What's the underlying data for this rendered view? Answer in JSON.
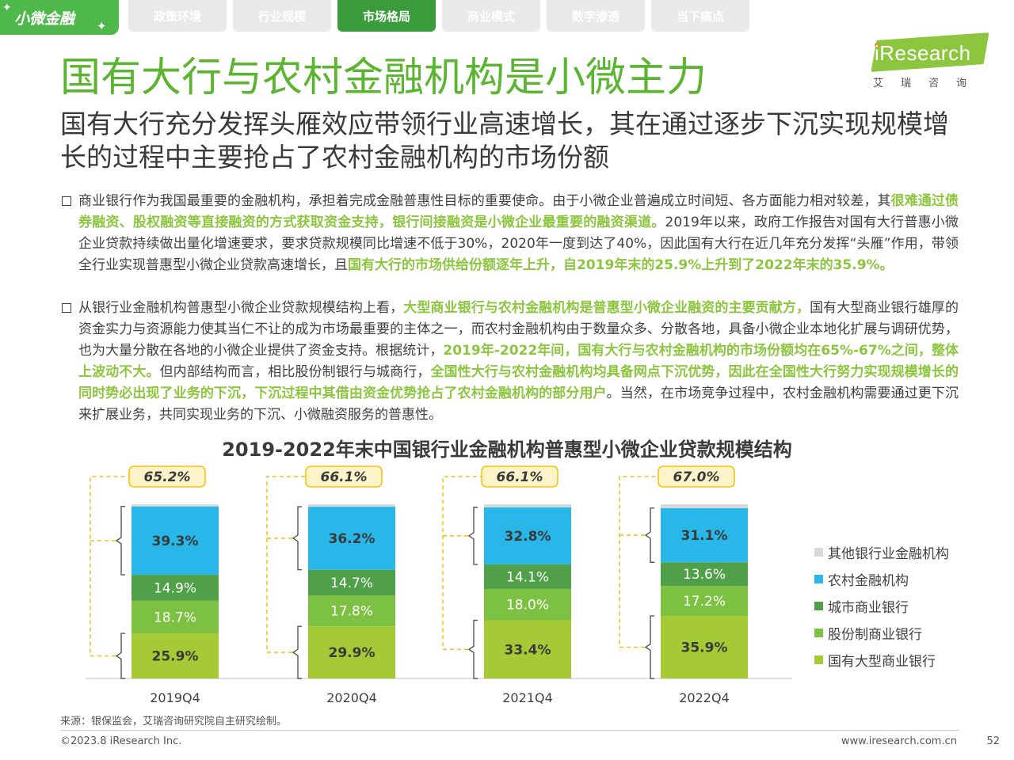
{
  "brand_tag": "小微金融",
  "nav": {
    "tabs": [
      {
        "label": "政策环境",
        "active": false
      },
      {
        "label": "行业规模",
        "active": false
      },
      {
        "label": "市场格局",
        "active": true
      },
      {
        "label": "商业模式",
        "active": false
      },
      {
        "label": "数字渗透",
        "active": false
      },
      {
        "label": "当下痛点",
        "active": false
      }
    ]
  },
  "logo": {
    "text": "iResearch",
    "cn": "艾瑞咨询"
  },
  "title": "国有大行与农村金融机构是小微主力",
  "subtitle": "国有大行充分发挥头雁效应带领行业高速增长，其在通过逐步下沉实现规模增长的过程中主要抢占了农村金融机构的市场份额",
  "paragraphs": [
    {
      "segments": [
        {
          "text": "商业银行作为我国最重要的金融机构，承担着完成金融普惠性目标的重要使命。由于小微企业普遍成立时间短、各方面能力相对较差，其",
          "highlight": false
        },
        {
          "text": "很难通过债券融资、股权融资等直接融资的方式获取资金支持，银行间接融资是小微企业最重要的融资渠道。",
          "highlight": true
        },
        {
          "text": "2019年以来，政府工作报告对国有大行普惠小微企业贷款持续做出量化增速要求，要求贷款规模同比增速不低于30%，2020年一度到达了40%，因此国有大行在近几年充分发挥“头雁”作用，带领全行业实现普惠型小微企业贷款高速增长，且",
          "highlight": false
        },
        {
          "text": "国有大行的市场供给份额逐年上升，自2019年末的25.9%上升到了2022年末的35.9%。",
          "highlight": true
        }
      ]
    },
    {
      "segments": [
        {
          "text": "从银行业金融机构普惠型小微企业贷款规模结构上看，",
          "highlight": false
        },
        {
          "text": "大型商业银行与农村金融机构是普惠型小微企业融资的主要贡献方，",
          "highlight": true
        },
        {
          "text": "国有大型商业银行雄厚的资金实力与资源能力使其当仁不让的成为市场最重要的主体之一，而农村金融机构由于数量众多、分散各地，具备小微企业本地化扩展与调研优势，也为大量分散在各地的小微企业提供了资金支持。根据统计，",
          "highlight": false
        },
        {
          "text": "2019年-2022年间，国有大行与农村金融机构的市场份额均在65%-67%之间，整体上波动不大。",
          "highlight": true
        },
        {
          "text": "但内部结构而言，相比股份制银行与城商行，",
          "highlight": false
        },
        {
          "text": "全国性大行与农村金融机构均具备网点下沉优势，因此在全国性大行努力实现规模增长的同时势必出现了业务的下沉，下沉过程中其借由资金优势抢占了农村金融机构的部分用户",
          "highlight": true
        },
        {
          "text": "。当然，在市场竞争过程中，农村金融机构需要通过更下沉来扩展业务，共同实现业务的下沉、小微融资服务的普惠性。",
          "highlight": false
        }
      ]
    }
  ],
  "chart_data": {
    "type": "bar",
    "stacked": true,
    "title": "2019-2022年末中国银行业金融机构普惠型小微企业贷款规模结构",
    "categories": [
      "2019Q4",
      "2020Q4",
      "2021Q4",
      "2022Q4"
    ],
    "series": [
      {
        "name": "国有大型商业银行",
        "values": [
          25.9,
          29.9,
          33.4,
          35.9
        ],
        "labels": [
          "25.9%",
          "29.9%",
          "33.4%",
          "35.9%"
        ],
        "color": "#a6c936",
        "label_color": "#3a3a3a",
        "bold": true
      },
      {
        "name": "股份制商业银行",
        "values": [
          18.7,
          17.8,
          18.0,
          17.2
        ],
        "labels": [
          "18.7%",
          "17.8%",
          "18.0%",
          "17.2%"
        ],
        "color": "#7cc142",
        "label_color": "#ffffff",
        "bold": false
      },
      {
        "name": "城市商业银行",
        "values": [
          14.9,
          14.7,
          14.1,
          13.6
        ],
        "labels": [
          "14.9%",
          "14.7%",
          "14.1%",
          "13.6%"
        ],
        "color": "#4fa048",
        "label_color": "#ffffff",
        "bold": false
      },
      {
        "name": "农村金融机构",
        "values": [
          39.3,
          36.2,
          32.8,
          31.1
        ],
        "labels": [
          "39.3%",
          "36.2%",
          "32.8%",
          "31.1%"
        ],
        "color": "#29b6e8",
        "label_color": "#3a3a3a",
        "bold": true
      },
      {
        "name": "其他银行业金融机构",
        "values": [
          1.2,
          1.4,
          1.7,
          2.2
        ],
        "labels": [
          "",
          "",
          "",
          ""
        ],
        "color": "#d9d9d9",
        "label_color": "#3a3a3a",
        "bold": false
      }
    ],
    "combined_share": {
      "description_series": [
        "国有大型商业银行",
        "农村金融机构"
      ],
      "values": [
        65.2,
        66.1,
        66.1,
        67.0
      ],
      "labels": [
        "65.2%",
        "66.1%",
        "66.1%",
        "67.0%"
      ]
    },
    "ylim": [
      0,
      100
    ],
    "legend_position": "right",
    "legend_order": [
      "其他银行业金融机构",
      "农村金融机构",
      "城市商业银行",
      "股份制商业银行",
      "国有大型商业银行"
    ]
  },
  "source": "来源：银保监会，艾瑞咨询研究院自主研究绘制。",
  "footer": {
    "copyright": "©2023.8 iResearch Inc.",
    "site": "www.iresearch.com.cn",
    "page": "52"
  },
  "colors": {
    "accent_green": "#5cb531",
    "highlight_green": "#8cc63f",
    "nav_active": "#3a9c3a",
    "nav_inactive": "#e9e9e9",
    "callout_fill": "#fdf3c8",
    "callout_border": "#f3c318"
  }
}
